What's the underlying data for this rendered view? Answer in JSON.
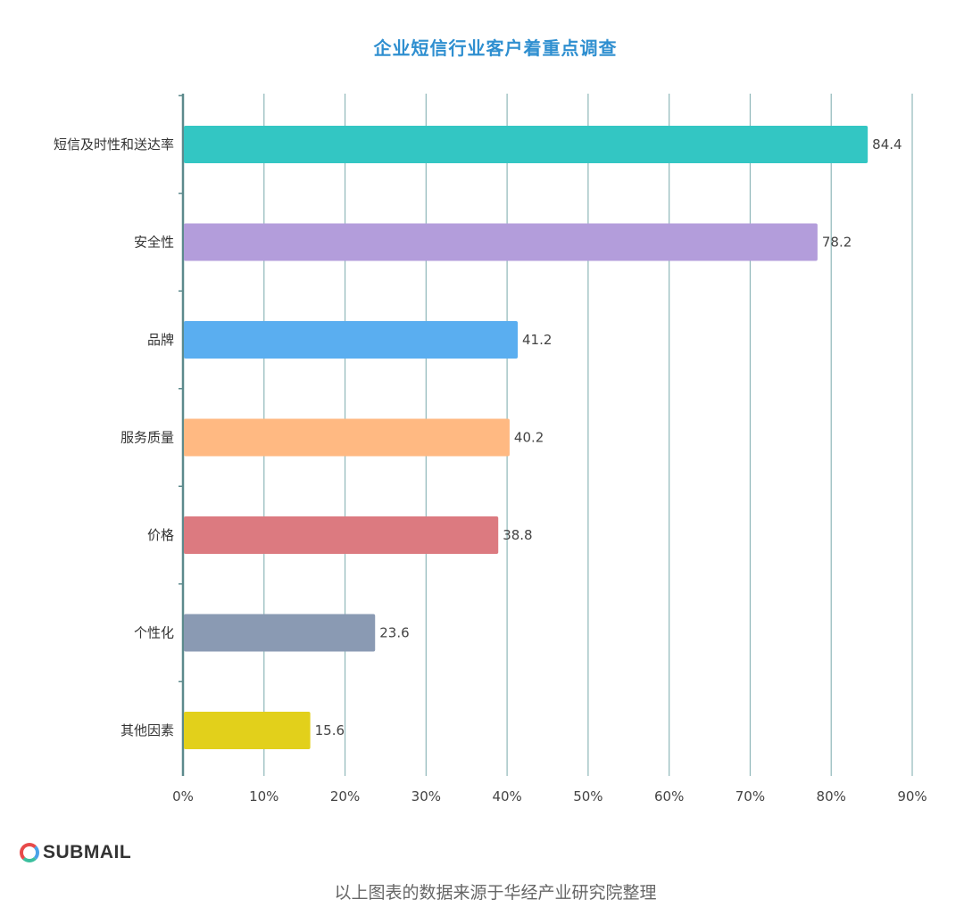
{
  "brand": {
    "name": "SUBMAIL",
    "logo_icon": "submail-ring-logo"
  },
  "source_note": "以上图表的数据来源于华经产业研究院整理",
  "chart_data": {
    "type": "bar",
    "orientation": "horizontal",
    "title": "企业短信行业客户着重点调查",
    "xlabel": "",
    "ylabel": "",
    "xlim": [
      0,
      90
    ],
    "x_ticks": [
      "0%",
      "10%",
      "20%",
      "30%",
      "40%",
      "50%",
      "60%",
      "70%",
      "80%",
      "90%"
    ],
    "grid": "vertical",
    "categories": [
      "短信及时性和送达率",
      "安全性",
      "品牌",
      "服务质量",
      "价格",
      "个性化",
      "其他因素"
    ],
    "values": [
      84.4,
      78.2,
      41.2,
      40.2,
      38.8,
      23.6,
      15.6
    ],
    "value_labels": [
      "84.4",
      "78.2",
      "41.2",
      "40.2",
      "38.8",
      "23.6",
      "15.6"
    ],
    "colors": [
      "#33c6c3",
      "#b39ddb",
      "#5aaef0",
      "#ffb982",
      "#dc7a80",
      "#8a9ab3",
      "#e2d01b"
    ],
    "grid_color": "#8fb7b9",
    "axis_color": "#5c8a8c"
  }
}
